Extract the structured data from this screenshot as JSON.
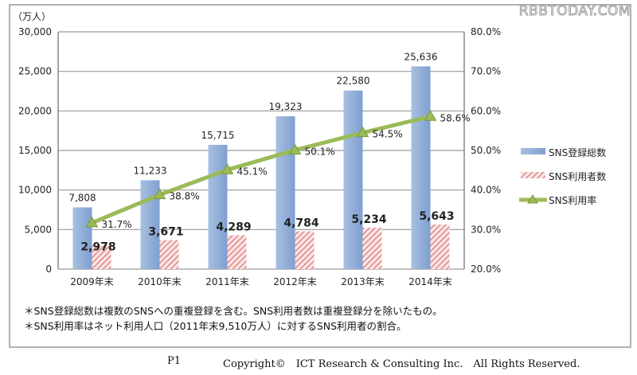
{
  "watermark": "RBBTODAY.COM",
  "chart_data": {
    "type": "bar+line",
    "y_unit_label": "（万人）",
    "categories": [
      "2009年末",
      "2010年末",
      "2011年末",
      "2012年末",
      "2013年末",
      "2014年末"
    ],
    "series": [
      {
        "name": "SNS登録総数",
        "type": "bar",
        "axis": "left",
        "values": [
          7808,
          11233,
          15715,
          19323,
          22580,
          25636
        ],
        "labels": [
          "7,808",
          "11,233",
          "15,715",
          "19,323",
          "22,580",
          "25,636"
        ],
        "color": "#95b3d7"
      },
      {
        "name": "SNS利用者数",
        "type": "bar",
        "axis": "left",
        "values": [
          2978,
          3671,
          4289,
          4784,
          5234,
          5643
        ],
        "labels": [
          "2,978",
          "3,671",
          "4,289",
          "4,784",
          "5,234",
          "5,643"
        ],
        "color": "#e6a8a8"
      },
      {
        "name": "SNS利用率",
        "type": "line",
        "axis": "right",
        "values": [
          31.7,
          38.8,
          45.1,
          50.1,
          54.5,
          58.6
        ],
        "labels": [
          "31.7%",
          "38.8%",
          "45.1%",
          "50.1%",
          "54.5%",
          "58.6%"
        ],
        "color": "#9bbb59"
      }
    ],
    "ylim_left": [
      0,
      30000
    ],
    "yticks_left": [
      "0",
      "5,000",
      "10,000",
      "15,000",
      "20,000",
      "25,000",
      "30,000"
    ],
    "ylim_right": [
      20,
      80
    ],
    "yticks_right": [
      "20.0%",
      "30.0%",
      "40.0%",
      "50.0%",
      "60.0%",
      "70.0%",
      "80.0%"
    ],
    "grid": true,
    "legend_placement": "right"
  },
  "notes": [
    "＊SNS登録総数は複数のSNSへの重複登録を含む。SNS利用者数は重複登録分を除いたもの。",
    "＊SNS利用率はネット利用人口（2011年末9,510万人）に対するSNS利用者の割合。"
  ],
  "footer": {
    "page": "P1",
    "copyright": "Copyright©　ICT Research & Consulting Inc.　All Rights Reserved."
  }
}
